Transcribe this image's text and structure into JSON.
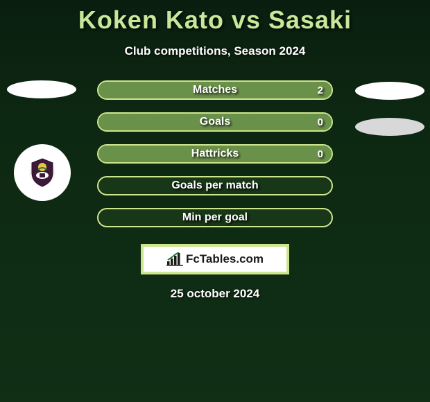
{
  "title": "Koken Kato vs Sasaki",
  "subtitle": "Club competitions, Season 2024",
  "stats": [
    {
      "label": "Matches",
      "value": "2",
      "fill_color": "#6a914a",
      "fill_pct": 100
    },
    {
      "label": "Goals",
      "value": "0",
      "fill_color": "#6a914a",
      "fill_pct": 100
    },
    {
      "label": "Hattricks",
      "value": "0",
      "fill_color": "#6a914a",
      "fill_pct": 100
    },
    {
      "label": "Goals per match",
      "value": "",
      "fill_color": null,
      "fill_pct": 0
    },
    {
      "label": "Min per goal",
      "value": "",
      "fill_color": null,
      "fill_pct": 0
    }
  ],
  "brand": "FcTables.com",
  "date": "25 october 2024",
  "colors": {
    "bar_border": "#cde68e",
    "bar_bg_empty": "#183618",
    "title_color": "#c7e89b",
    "background_top": "#0a1e0f",
    "background_bottom": "#102f15",
    "ellipse_white": "#ffffff",
    "ellipse_gray": "#d8d8d8"
  }
}
